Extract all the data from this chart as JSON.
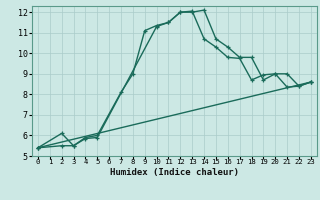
{
  "title": "",
  "xlabel": "Humidex (Indice chaleur)",
  "bg_color": "#cce8e4",
  "line_color": "#1a6b5a",
  "grid_color": "#aaccca",
  "xlim": [
    -0.5,
    23.5
  ],
  "ylim": [
    5,
    12.3
  ],
  "xticks": [
    0,
    1,
    2,
    3,
    4,
    5,
    6,
    7,
    8,
    9,
    10,
    11,
    12,
    13,
    14,
    15,
    16,
    17,
    18,
    19,
    20,
    21,
    22,
    23
  ],
  "yticks": [
    5,
    6,
    7,
    8,
    9,
    10,
    11,
    12
  ],
  "line1_x": [
    0,
    2,
    3,
    4,
    5,
    7,
    8,
    9,
    10,
    11,
    12,
    13,
    14,
    15,
    16,
    17,
    18,
    19,
    20,
    21,
    22,
    23
  ],
  "line1_y": [
    5.4,
    6.1,
    5.5,
    5.9,
    6.0,
    8.1,
    9.0,
    11.1,
    11.35,
    11.5,
    12.0,
    12.0,
    12.1,
    10.7,
    10.3,
    9.8,
    9.8,
    8.7,
    9.0,
    9.0,
    8.4,
    8.6
  ],
  "line2_x": [
    0,
    2,
    3,
    4,
    5,
    10,
    11,
    12,
    13,
    14,
    15,
    16,
    17,
    18,
    19,
    20,
    21,
    22,
    23
  ],
  "line2_y": [
    5.4,
    5.5,
    5.5,
    5.85,
    5.9,
    11.3,
    11.5,
    12.0,
    12.05,
    10.7,
    10.3,
    9.8,
    9.75,
    8.7,
    8.95,
    9.0,
    8.35,
    8.4,
    8.6
  ],
  "line3_x": [
    0,
    23
  ],
  "line3_y": [
    5.4,
    8.6
  ]
}
